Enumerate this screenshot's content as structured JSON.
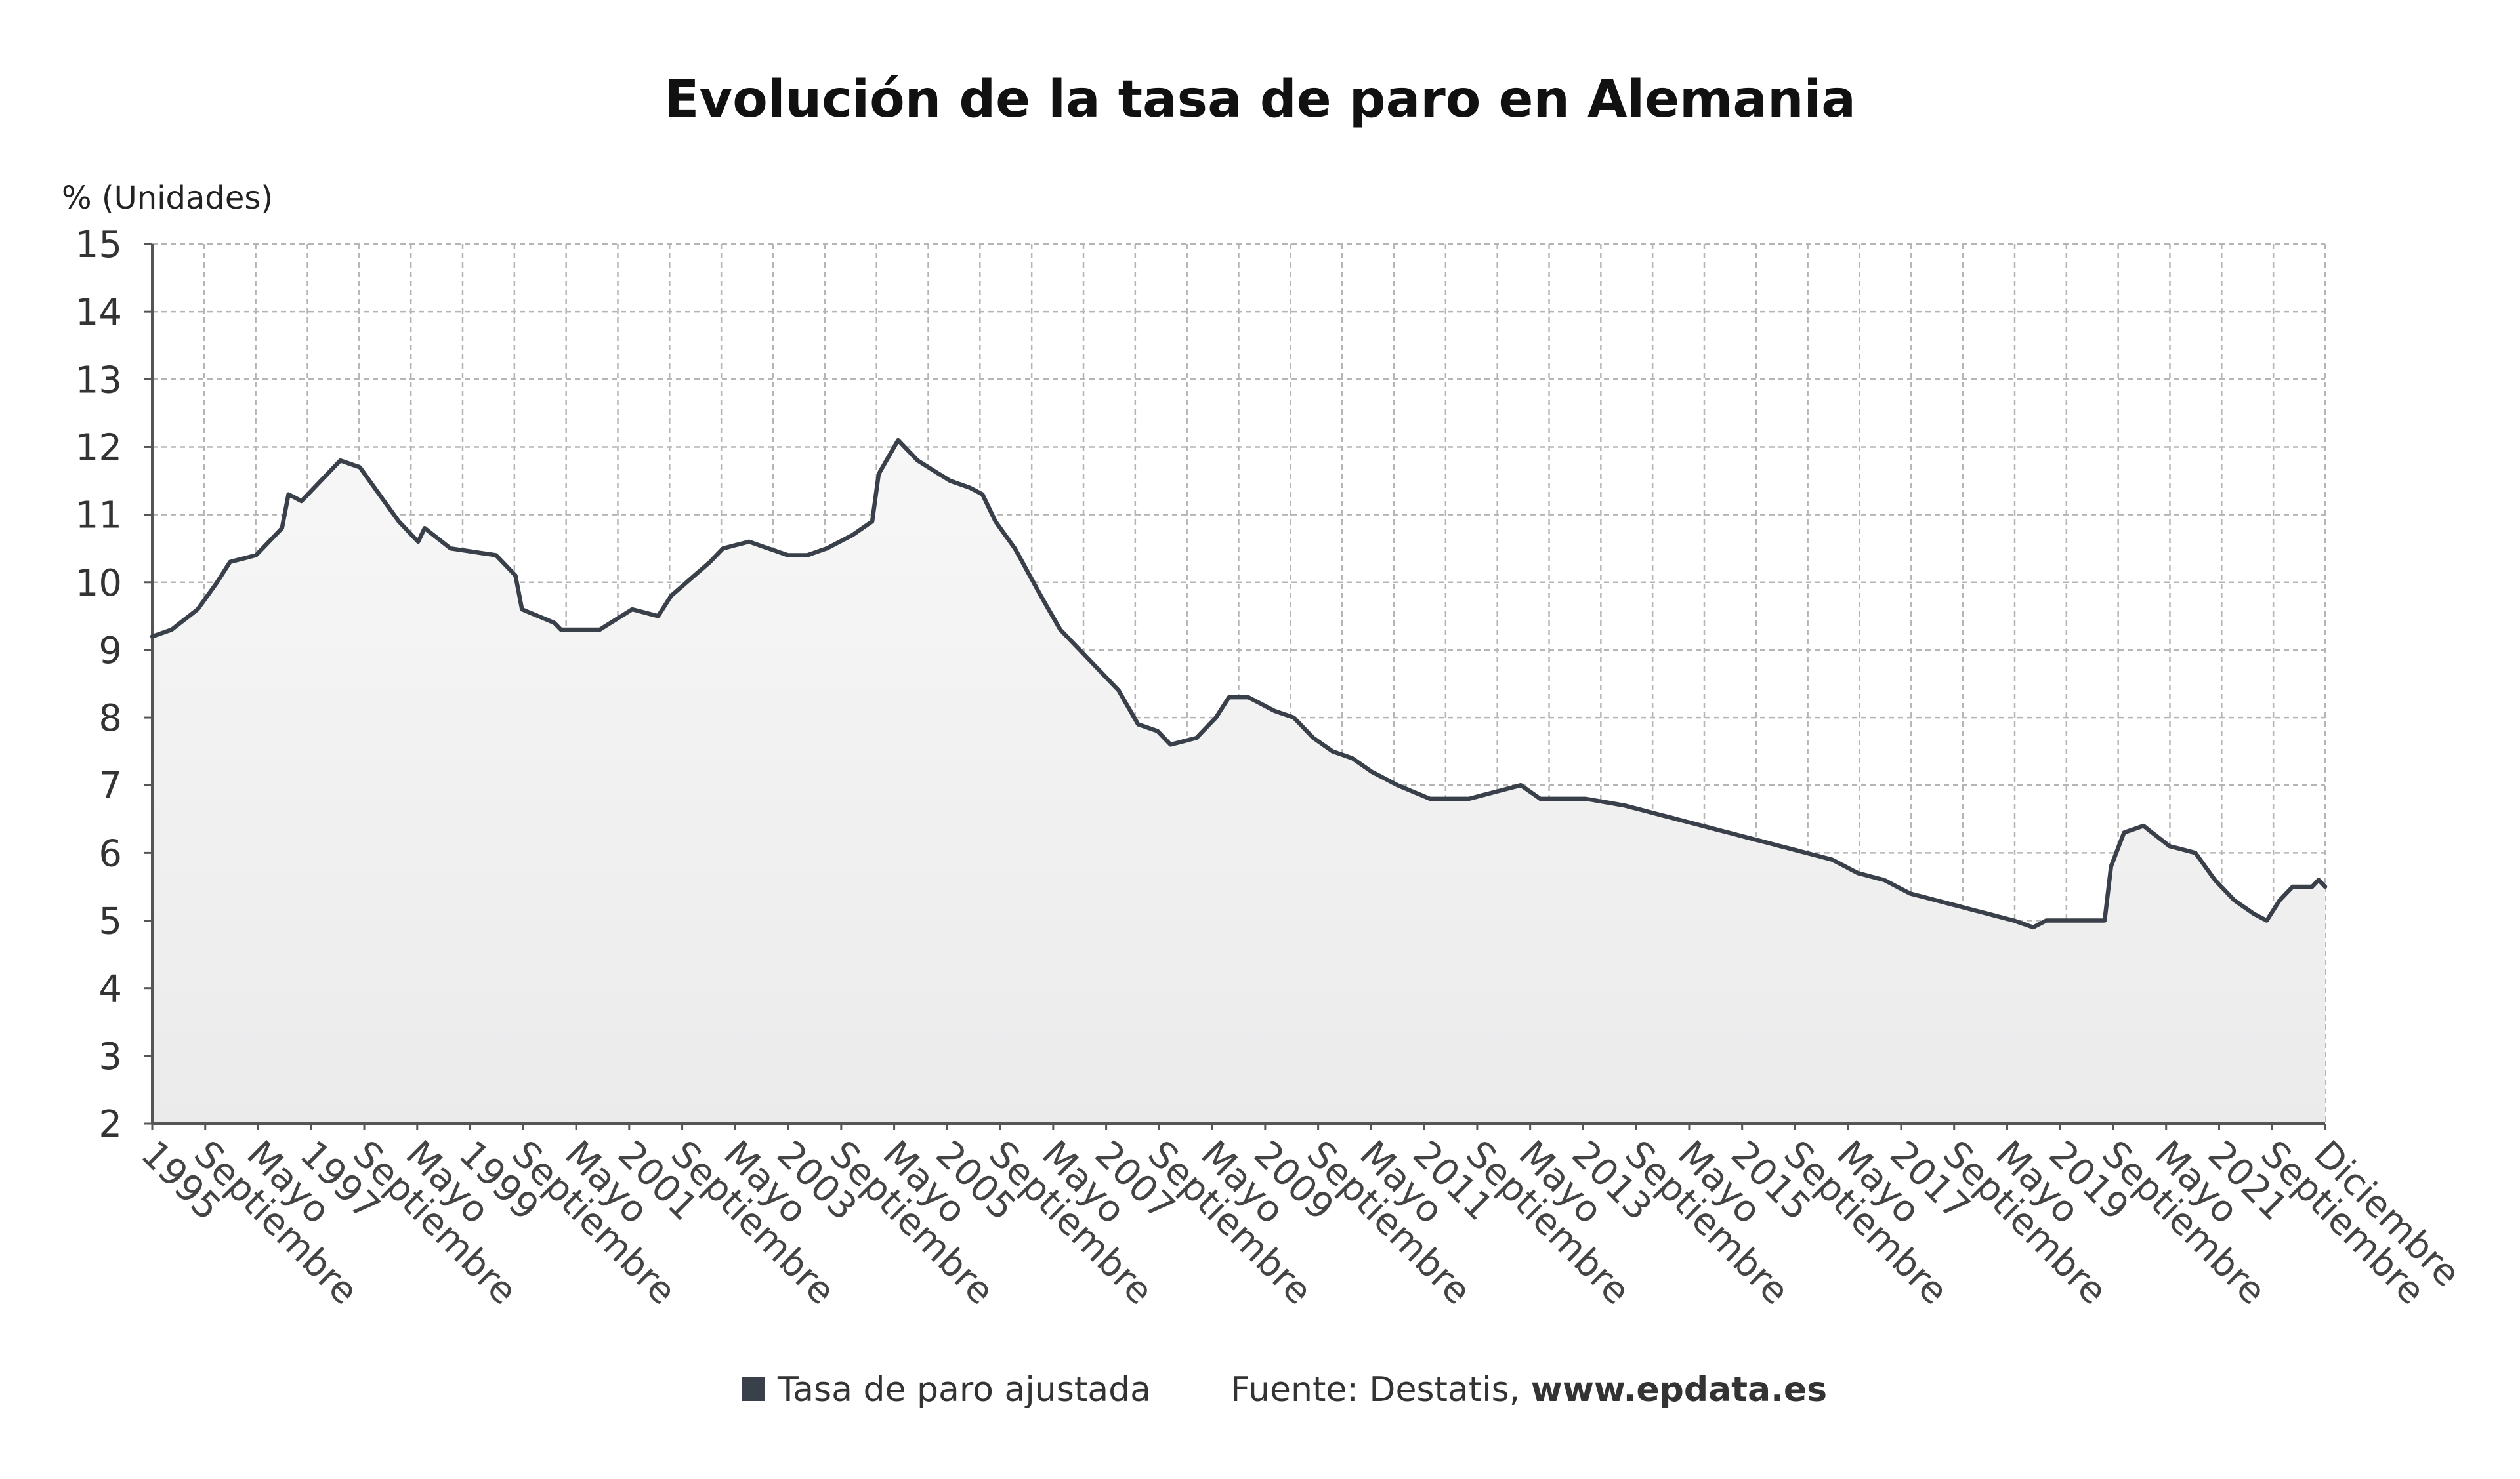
{
  "chart_data": {
    "type": "area",
    "title": "Evolución de la tasa de paro en Alemania",
    "ylabel": "% (Unidades)",
    "ylim": [
      2,
      15
    ],
    "yticks": [
      "15",
      "14",
      "13",
      "12",
      "11",
      "10",
      "9",
      "8",
      "7",
      "6",
      "5",
      "4",
      "3",
      "2"
    ],
    "xticks": [
      "1995",
      "Septiembre",
      "Mayo",
      "1997",
      "Septiembre",
      "Mayo",
      "1999",
      "Septiembre",
      "Mayo",
      "2001",
      "Septiembre",
      "Mayo",
      "2003",
      "Septiembre",
      "Mayo",
      "2005",
      "Septiembre",
      "Mayo",
      "2007",
      "Septiembre",
      "Mayo",
      "2009",
      "Septiembre",
      "Mayo",
      "2011",
      "Septiembre",
      "Mayo",
      "2013",
      "Septiembre",
      "Mayo",
      "2015",
      "Septiembre",
      "Mayo",
      "2017",
      "Septiembre",
      "Mayo",
      "2019",
      "Septiembre",
      "Mayo",
      "2021",
      "Septiembre",
      "Diciembre"
    ],
    "x_start": "1995-01",
    "x_end": "2022-12",
    "grid": true,
    "line_color": "#3a4049",
    "fill_top_color": "#f7f7f7",
    "fill_bottom_color": "#ebebec",
    "series": [
      {
        "name": "Tasa de paro ajustada",
        "color": "#3a4049",
        "anchors": [
          [
            "1995-01",
            9.2
          ],
          [
            "1995-04",
            9.3
          ],
          [
            "1995-08",
            9.6
          ],
          [
            "1995-11",
            10.0
          ],
          [
            "1996-01",
            10.3
          ],
          [
            "1996-05",
            10.4
          ],
          [
            "1996-09",
            10.8
          ],
          [
            "1996-10",
            11.3
          ],
          [
            "1996-12",
            11.2
          ],
          [
            "1997-03",
            11.5
          ],
          [
            "1997-06",
            11.8
          ],
          [
            "1997-09",
            11.7
          ],
          [
            "1997-12",
            11.3
          ],
          [
            "1998-03",
            10.9
          ],
          [
            "1998-06",
            10.6
          ],
          [
            "1998-07",
            10.8
          ],
          [
            "1998-11",
            10.5
          ],
          [
            "1999-06",
            10.4
          ],
          [
            "1999-09",
            10.1
          ],
          [
            "1999-10",
            9.6
          ],
          [
            "2000-03",
            9.4
          ],
          [
            "2000-04",
            9.3
          ],
          [
            "2000-10",
            9.3
          ],
          [
            "2001-03",
            9.6
          ],
          [
            "2001-07",
            9.5
          ],
          [
            "2001-09",
            9.8
          ],
          [
            "2002-03",
            10.3
          ],
          [
            "2002-05",
            10.5
          ],
          [
            "2002-09",
            10.6
          ],
          [
            "2002-12",
            10.5
          ],
          [
            "2003-03",
            10.4
          ],
          [
            "2003-06",
            10.4
          ],
          [
            "2003-09",
            10.5
          ],
          [
            "2004-01",
            10.7
          ],
          [
            "2004-04",
            10.9
          ],
          [
            "2004-05",
            11.6
          ],
          [
            "2004-08",
            12.1
          ],
          [
            "2004-11",
            11.8
          ],
          [
            "2005-04",
            11.5
          ],
          [
            "2005-07",
            11.4
          ],
          [
            "2005-09",
            11.3
          ],
          [
            "2005-11",
            10.9
          ],
          [
            "2006-02",
            10.5
          ],
          [
            "2006-06",
            9.8
          ],
          [
            "2006-09",
            9.3
          ],
          [
            "2007-06",
            8.4
          ],
          [
            "2007-09",
            7.9
          ],
          [
            "2007-12",
            7.8
          ],
          [
            "2008-02",
            7.6
          ],
          [
            "2008-06",
            7.7
          ],
          [
            "2008-09",
            8.0
          ],
          [
            "2008-11",
            8.3
          ],
          [
            "2009-02",
            8.3
          ],
          [
            "2009-06",
            8.1
          ],
          [
            "2009-09",
            8.0
          ],
          [
            "2009-12",
            7.7
          ],
          [
            "2010-03",
            7.5
          ],
          [
            "2010-06",
            7.4
          ],
          [
            "2010-09",
            7.2
          ],
          [
            "2011-01",
            7.0
          ],
          [
            "2011-06",
            6.8
          ],
          [
            "2011-12",
            6.8
          ],
          [
            "2012-04",
            6.9
          ],
          [
            "2012-08",
            7.0
          ],
          [
            "2012-11",
            6.8
          ],
          [
            "2013-06",
            6.8
          ],
          [
            "2013-12",
            6.7
          ],
          [
            "2014-04",
            6.6
          ],
          [
            "2014-08",
            6.5
          ],
          [
            "2014-12",
            6.4
          ],
          [
            "2015-04",
            6.3
          ],
          [
            "2015-08",
            6.2
          ],
          [
            "2015-12",
            6.1
          ],
          [
            "2016-04",
            6.0
          ],
          [
            "2016-08",
            5.9
          ],
          [
            "2016-12",
            5.7
          ],
          [
            "2017-04",
            5.6
          ],
          [
            "2017-08",
            5.4
          ],
          [
            "2017-12",
            5.3
          ],
          [
            "2018-04",
            5.2
          ],
          [
            "2018-08",
            5.1
          ],
          [
            "2018-12",
            5.0
          ],
          [
            "2019-03",
            4.9
          ],
          [
            "2019-05",
            5.0
          ],
          [
            "2020-02",
            5.0
          ],
          [
            "2020-03",
            5.8
          ],
          [
            "2020-05",
            6.3
          ],
          [
            "2020-08",
            6.4
          ],
          [
            "2020-12",
            6.1
          ],
          [
            "2021-04",
            6.0
          ],
          [
            "2021-07",
            5.6
          ],
          [
            "2021-10",
            5.3
          ],
          [
            "2022-01",
            5.1
          ],
          [
            "2022-03",
            5.0
          ],
          [
            "2022-05",
            5.3
          ],
          [
            "2022-07",
            5.5
          ],
          [
            "2022-10",
            5.5
          ],
          [
            "2022-11",
            5.6
          ],
          [
            "2022-12",
            5.5
          ]
        ]
      }
    ]
  },
  "legend": {
    "label": "Tasa de paro ajustada",
    "swatch_color": "#3a4049"
  },
  "source": {
    "prefix": "Fuente: Destatis, ",
    "site": "www.epdata.es"
  }
}
